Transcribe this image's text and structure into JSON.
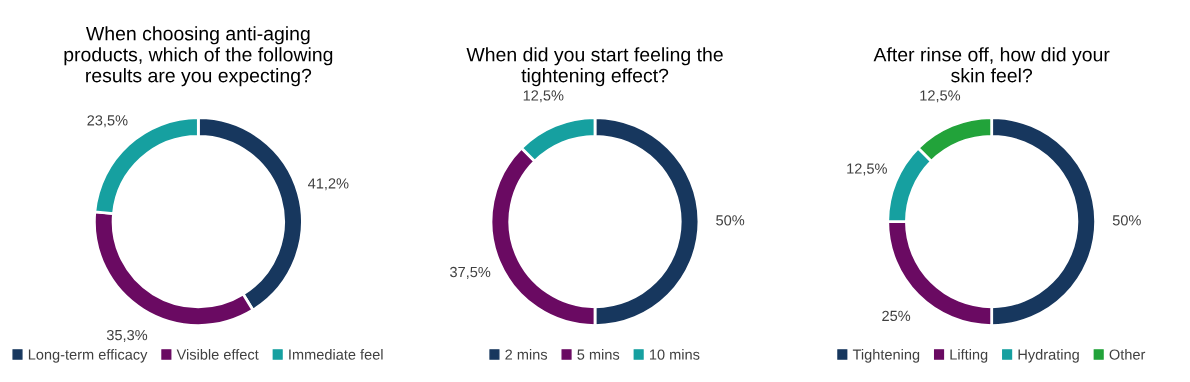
{
  "chart_data": [
    {
      "type": "donut",
      "title": "When choosing anti-aging\nproducts, which of the following\nresults are you expecting?",
      "categories": [
        "Long-term efficacy",
        "Visible effect",
        "Immediate feel"
      ],
      "values": [
        41.2,
        35.3,
        23.5
      ],
      "value_labels": [
        "41,2%",
        "35,3%",
        "23,5%"
      ],
      "colors": [
        "#17375e",
        "#6a0a62",
        "#16a0a0"
      ],
      "legend": "bottom"
    },
    {
      "type": "donut",
      "title": "When did you start feeling the\ntightening effect?",
      "categories": [
        "2 mins",
        "5 mins",
        "10 mins"
      ],
      "values": [
        50,
        37.5,
        12.5
      ],
      "value_labels": [
        "50%",
        "37,5%",
        "12,5%"
      ],
      "colors": [
        "#17375e",
        "#6a0a62",
        "#16a0a0"
      ],
      "legend": "bottom"
    },
    {
      "type": "donut",
      "title": "After rinse off, how did your\nskin feel?",
      "categories": [
        "Tightening",
        "Lifting",
        "Hydrating",
        "Other"
      ],
      "values": [
        50,
        25,
        12.5,
        12.5
      ],
      "value_labels": [
        "50%",
        "25%",
        "12,5%",
        "12,5%"
      ],
      "colors": [
        "#17375e",
        "#6a0a62",
        "#16a0a0",
        "#22a33a"
      ],
      "legend": "bottom"
    }
  ]
}
